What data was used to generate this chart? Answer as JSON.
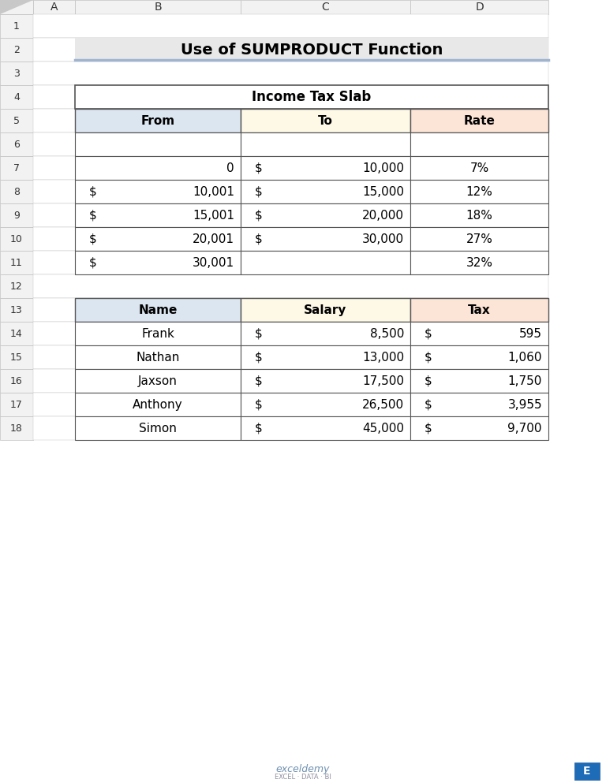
{
  "title": "Use of SUMPRODUCT Function",
  "title_bg": "#e8e8e8",
  "title_underline": "#a0b4d0",
  "bg_color": "#ffffff",
  "col_header_A": "#dce6f1",
  "col_header_B": "#fef9e7",
  "col_header_C": "#fce4d6",
  "slab_title": "Income Tax Slab",
  "slab_headers": [
    "From",
    "To",
    "Rate"
  ],
  "slab_rows": [
    [
      "",
      "",
      ""
    ],
    [
      "0",
      "$ 10,000",
      "7%"
    ],
    [
      "$ 10,001",
      "$ 15,000",
      "12%"
    ],
    [
      "$ 15,001",
      "$ 20,000",
      "18%"
    ],
    [
      "$ 20,001",
      "$ 30,000",
      "27%"
    ],
    [
      "$ 30,001",
      "",
      "32%"
    ]
  ],
  "people_headers": [
    "Name",
    "Salary",
    "Tax"
  ],
  "people_rows": [
    [
      "Frank",
      "$ 8,500",
      "$ 595"
    ],
    [
      "Nathan",
      "$ 13,000",
      "$ 1,060"
    ],
    [
      "Jaxson",
      "$ 17,500",
      "$ 1,750"
    ],
    [
      "Anthony",
      "$ 26,500",
      "$ 3,955"
    ],
    [
      "Simon",
      "$ 45,000",
      "$ 9,700"
    ]
  ],
  "grid_color": "#555555",
  "row_bg": "#ffffff",
  "col_labels": [
    "A",
    "B",
    "C",
    "D"
  ],
  "row_labels": [
    "1",
    "2",
    "3",
    "4",
    "5",
    "6",
    "7",
    "8",
    "9",
    "10",
    "11",
    "12",
    "13",
    "14",
    "15",
    "16",
    "17",
    "18"
  ],
  "excel_header_bg": "#f2f2f2",
  "excel_header_border": "#c0c0c0"
}
